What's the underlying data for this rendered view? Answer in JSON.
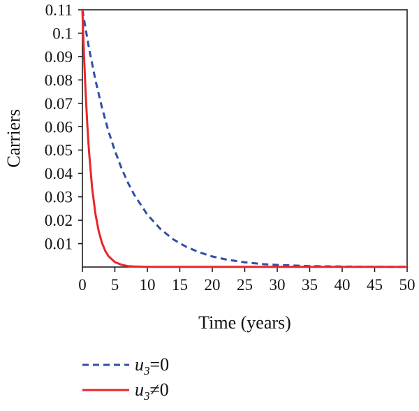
{
  "chart_data": {
    "type": "line",
    "title": "",
    "xlabel": "Time (years)",
    "ylabel": "Carriers",
    "xlim": [
      0,
      50
    ],
    "ylim": [
      0,
      0.11
    ],
    "x_ticks": [
      0,
      5,
      10,
      15,
      20,
      25,
      30,
      35,
      40,
      45,
      50
    ],
    "x_tick_labels": [
      "0",
      "5",
      "10",
      "15",
      "20",
      "25",
      "30",
      "35",
      "40",
      "45",
      "50"
    ],
    "y_ticks": [
      0.01,
      0.02,
      0.03,
      0.04,
      0.05,
      0.06,
      0.07,
      0.08,
      0.09,
      0.1,
      0.11
    ],
    "y_tick_labels": [
      "0.01",
      "0.02",
      "0.03",
      "0.04",
      "0.05",
      "0.06",
      "0.07",
      "0.08",
      "0.09",
      "0.1",
      "0.11"
    ],
    "grid": false,
    "legend_position": "bottom-left",
    "series": [
      {
        "name": "u3=0",
        "legend_base": "u",
        "legend_sub": "3",
        "legend_rest": "=0",
        "color": "#2f4fa8",
        "style": "dashed",
        "x": [
          0,
          1,
          2,
          3,
          4,
          5,
          6,
          7,
          8,
          10,
          12,
          14,
          16,
          18,
          20,
          22,
          25,
          28,
          30,
          35,
          40,
          45,
          50
        ],
        "y": [
          0.11,
          0.0938,
          0.08,
          0.0683,
          0.0582,
          0.0497,
          0.0424,
          0.0361,
          0.0308,
          0.0224,
          0.0163,
          0.0118,
          0.0086,
          0.0063,
          0.0045,
          0.0033,
          0.002,
          0.0012,
          0.0009,
          0.0004,
          0.0002,
          0.0001,
          0.0001
        ]
      },
      {
        "name": "u3≠0",
        "legend_base": "u",
        "legend_sub": "3",
        "legend_rest": "≠0",
        "color": "#e8262a",
        "style": "solid",
        "x": [
          0,
          0.25,
          0.5,
          0.75,
          1,
          1.5,
          2,
          2.5,
          3,
          3.5,
          4,
          5,
          6,
          7,
          8,
          10,
          15,
          20,
          30,
          40,
          50
        ],
        "y": [
          0.11,
          0.0904,
          0.0742,
          0.061,
          0.0501,
          0.0338,
          0.0228,
          0.0154,
          0.0104,
          0.007,
          0.0047,
          0.0021,
          0.001,
          0.0004,
          0.0002,
          0.0001,
          0.0001,
          0.0001,
          0.0001,
          0.0001,
          0.0001
        ]
      }
    ]
  }
}
